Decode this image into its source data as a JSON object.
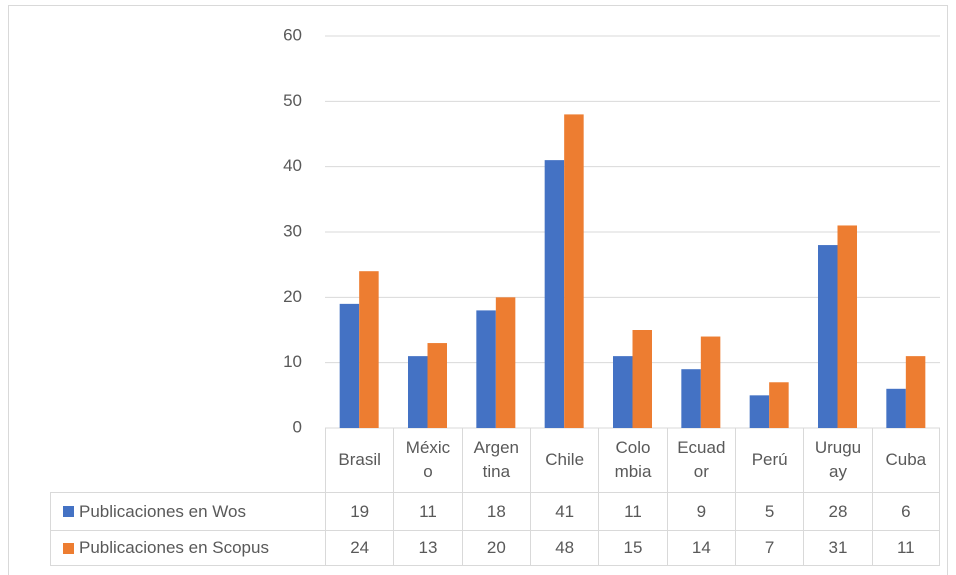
{
  "chart_data": {
    "type": "bar",
    "categories": [
      "Brasil",
      "México",
      "Argentina",
      "Chile",
      "Colombia",
      "Ecuador",
      "Perú",
      "Uruguay",
      "Cuba"
    ],
    "series": [
      {
        "name": "Publicaciones en Wos",
        "color": "#4472c4",
        "values": [
          19,
          11,
          18,
          41,
          11,
          9,
          5,
          28,
          6
        ]
      },
      {
        "name": "Publicaciones en Scopus",
        "color": "#ed7d31",
        "values": [
          24,
          13,
          20,
          48,
          15,
          14,
          7,
          31,
          11
        ]
      }
    ],
    "ylim": [
      0,
      60
    ],
    "yticks": [
      0,
      10,
      20,
      30,
      40,
      50,
      60
    ],
    "grid": true
  }
}
